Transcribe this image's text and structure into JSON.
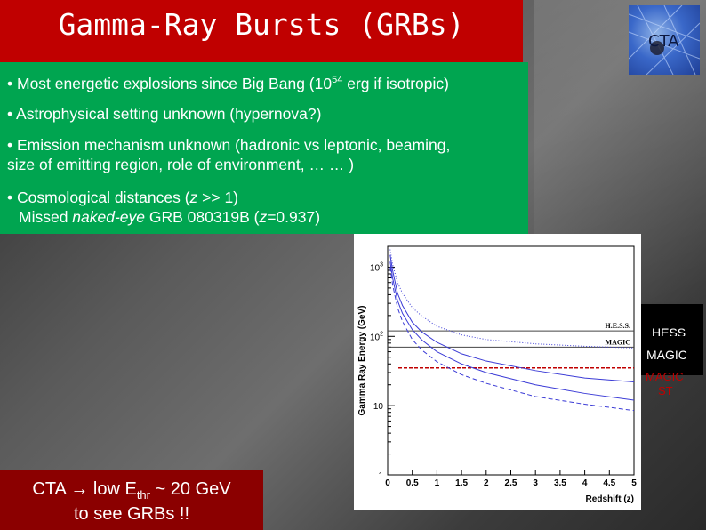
{
  "slide": {
    "title": "Gamma-Ray Bursts (GRBs)",
    "logo_text": "CTA",
    "bullets": [
      {
        "pre": "Most energetic explosions since Big Bang (10",
        "sup": "54",
        "post": " erg if isotropic)"
      },
      {
        "text": "Astrophysical setting unknown (hypernova?)"
      },
      {
        "line1": "Emission mechanism unknown (hadronic vs leptonic, beaming,",
        "line2": "size of emitting region, role of environment, … … )"
      },
      {
        "line1_pre": "Cosmological distances (",
        "line1_z": "z",
        "line1_post": " >> 1)",
        "line2_pre": "Missed ",
        "line2_italic": "naked-eye",
        "line2_mid": " GRB 080319B (",
        "line2_z": "z",
        "line2_post": "=0.937)"
      }
    ],
    "bottom_box": {
      "line1_pre": "CTA ",
      "line1_arrow": "→",
      "line1_mid": " low E",
      "line1_sub": "thr",
      "line1_post": " ~ 20 GeV",
      "line2": "to see GRBs !!"
    }
  },
  "legend": {
    "hess": "HESS",
    "magic": "MAGIC",
    "magic_st_line1": "MAGIC",
    "magic_st_line2": "ST",
    "magic_st_color": "#c00000"
  },
  "chart_data": {
    "type": "line",
    "ylabel": "Gamma Ray Energy (GeV)",
    "xlabel": "Redshift (z)",
    "xlim": [
      0,
      5
    ],
    "ylim": [
      1,
      2000
    ],
    "yscale": "log",
    "x_ticks": [
      "0",
      "0.5",
      "1",
      "1.5",
      "2",
      "2.5",
      "3",
      "3.5",
      "4",
      "4.5",
      "5"
    ],
    "y_ticks": [
      {
        "base": "10",
        "exp": "3",
        "value": 1000
      },
      {
        "base": "10",
        "exp": "2",
        "value": 100
      },
      {
        "base": "10",
        "exp": "",
        "value": 10
      },
      {
        "base": "1",
        "exp": "",
        "value": 1
      }
    ],
    "thresholds": [
      {
        "name": "H.E.S.S.",
        "value": 120
      },
      {
        "name": "MAGIC",
        "value": 70
      },
      {
        "name": "MAGIC ST",
        "value": 35
      }
    ],
    "series": [
      {
        "x": [
          0.05,
          0.1,
          0.2,
          0.3,
          0.5,
          0.7,
          1.0,
          1.5,
          2.0,
          3.0,
          4.0,
          5.0
        ],
        "values": [
          1500,
          900,
          420,
          280,
          160,
          115,
          82,
          56,
          44,
          32,
          25,
          22
        ],
        "style": "solid"
      },
      {
        "x": [
          0.05,
          0.1,
          0.2,
          0.3,
          0.5,
          0.7,
          1.0,
          1.5,
          2.0,
          3.0,
          4.0,
          5.0
        ],
        "values": [
          1200,
          700,
          330,
          215,
          125,
          88,
          60,
          40,
          30,
          20,
          15,
          12
        ],
        "style": "solid"
      },
      {
        "x": [
          0.05,
          0.1,
          0.2,
          0.3,
          0.5,
          0.7,
          1.0,
          1.5,
          2.0,
          3.0,
          4.0,
          5.0
        ],
        "values": [
          1800,
          1100,
          600,
          420,
          260,
          195,
          140,
          105,
          90,
          78,
          72,
          68
        ],
        "style": "dotted"
      },
      {
        "x": [
          0.05,
          0.1,
          0.2,
          0.3,
          0.5,
          0.7,
          1.0,
          1.5,
          2.0,
          3.0,
          4.0,
          5.0
        ],
        "values": [
          1000,
          560,
          260,
          165,
          90,
          63,
          43,
          28,
          21,
          13.5,
          10.5,
          8.5
        ],
        "style": "dashed"
      }
    ],
    "colors": {
      "curve": "#3b3bd6",
      "threshold": "#444444",
      "magic_st": "#c00000"
    }
  }
}
